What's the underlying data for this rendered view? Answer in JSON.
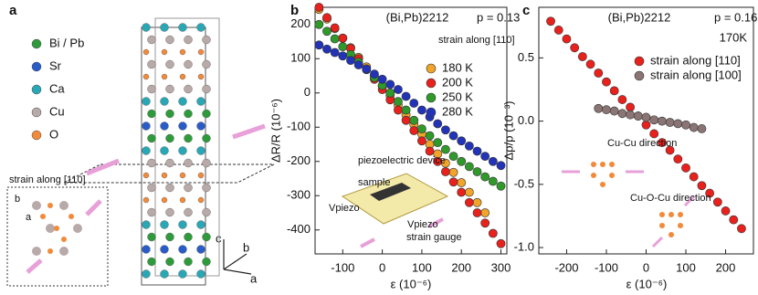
{
  "panel_a": {
    "label": "a",
    "atoms": [
      {
        "name": "Bi / Pb",
        "color": "#2f9a3c"
      },
      {
        "name": "Sr",
        "color": "#2a5cc8"
      },
      {
        "name": "Ca",
        "color": "#2aa7b5"
      },
      {
        "name": "Cu",
        "color": "#b8aaa8"
      },
      {
        "name": "O",
        "color": "#f28a3a"
      }
    ],
    "strain_label": "strain along [110]",
    "inset_axes": [
      "b",
      "a"
    ],
    "axes": [
      "c",
      "b",
      "a"
    ]
  },
  "chart_data": [
    {
      "type": "scatter",
      "panel": "b",
      "annotations": [
        "(Bi,Pb)2212",
        "p = 0.13",
        "strain along [110]"
      ],
      "inset_labels": [
        "piezoelectric device",
        "sample",
        "Vpiezo",
        "Vpiezo",
        "strain gauge"
      ],
      "xlabel": "ε (10⁻⁶)",
      "ylabel": "ΔR/R (10⁻⁶)",
      "xlim": [
        -170,
        315
      ],
      "ylim": [
        -470,
        250
      ],
      "xticks": [
        -100,
        0,
        100,
        200,
        300
      ],
      "yticks": [
        200,
        100,
        0,
        -100,
        -200,
        -300,
        -400
      ],
      "legend": "upper right",
      "series": [
        {
          "name": "180 K",
          "color": "#f0a52a",
          "x": [
            -160,
            -140,
            -120,
            -100,
            -80,
            -60,
            -40,
            -20,
            0,
            20,
            40,
            60,
            80,
            100,
            120,
            140,
            160,
            180,
            200,
            220,
            240,
            260
          ],
          "values": [
            244,
            216,
            188,
            160,
            132,
            104,
            76,
            48,
            20,
            -8,
            -36,
            -64,
            -92,
            -120,
            -150,
            -178,
            -205,
            -232,
            -262,
            -290,
            -320,
            -350
          ]
        },
        {
          "name": "200 K",
          "color": "#e8211d",
          "x": [
            -160,
            -140,
            -120,
            -100,
            -80,
            -60,
            -40,
            -20,
            0,
            20,
            40,
            60,
            80,
            100,
            120,
            140,
            160,
            180,
            200,
            220,
            240,
            260,
            280,
            300
          ],
          "values": [
            250,
            220,
            190,
            160,
            130,
            100,
            70,
            40,
            10,
            -20,
            -50,
            -80,
            -110,
            -140,
            -170,
            -200,
            -230,
            -260,
            -290,
            -320,
            -350,
            -380,
            -410,
            -440
          ]
        },
        {
          "name": "250 K",
          "color": "#2f9a2a",
          "x": [
            -160,
            -140,
            -120,
            -100,
            -80,
            -60,
            -40,
            -20,
            0,
            20,
            40,
            60,
            80,
            100,
            120,
            140,
            160,
            180,
            200,
            220,
            240,
            260,
            280,
            300
          ],
          "values": [
            200,
            180,
            158,
            135,
            112,
            90,
            68,
            45,
            22,
            0,
            -25,
            -50,
            -80,
            -105,
            -125,
            -145,
            -165,
            -185,
            -200,
            -215,
            -230,
            -245,
            -258,
            -272
          ]
        },
        {
          "name": "280 K",
          "color": "#2233b8",
          "x": [
            -160,
            -140,
            -120,
            -100,
            -80,
            -60,
            -40,
            -20,
            0,
            20,
            40,
            60,
            80,
            100,
            120,
            140,
            160,
            180,
            200,
            220,
            240,
            260,
            280,
            300
          ],
          "values": [
            140,
            128,
            118,
            108,
            95,
            82,
            70,
            55,
            40,
            25,
            10,
            -10,
            -30,
            -50,
            -70,
            -90,
            -108,
            -125,
            -140,
            -155,
            -170,
            -185,
            -200,
            -212
          ]
        }
      ]
    },
    {
      "type": "scatter",
      "panel": "c",
      "annotations": [
        "(Bi,Pb)2212",
        "p = 0.16",
        "170K"
      ],
      "inset_labels": [
        "Cu-Cu direction",
        "Cu-O-Cu direction"
      ],
      "xlabel": "ε (10⁻⁶)",
      "ylabel": "Δρ/ρ (10⁻³)",
      "xlim": [
        -270,
        270
      ],
      "ylim": [
        -1.05,
        0.9
      ],
      "xticks": [
        -200,
        -100,
        0,
        100,
        200
      ],
      "yticks": [
        0.5,
        {
          "value": 0,
          "label": "0.0"
        },
        -0.5,
        {
          "value": -1,
          "label": "-1.0"
        }
      ],
      "legend": "upper right",
      "series": [
        {
          "name": "strain along [110]",
          "color": "#e8211d",
          "x": [
            -240,
            -220,
            -200,
            -180,
            -160,
            -140,
            -120,
            -100,
            -80,
            -60,
            -40,
            -20,
            0,
            20,
            40,
            60,
            80,
            100,
            120,
            140,
            160,
            180,
            200,
            220,
            240
          ],
          "values": [
            0.79,
            0.72,
            0.65,
            0.58,
            0.51,
            0.45,
            0.38,
            0.31,
            0.24,
            0.17,
            0.11,
            0.04,
            -0.03,
            -0.1,
            -0.17,
            -0.23,
            -0.3,
            -0.37,
            -0.44,
            -0.51,
            -0.57,
            -0.64,
            -0.71,
            -0.78,
            -0.85
          ]
        },
        {
          "name": "strain along [100]",
          "color": "#8a7474",
          "x": [
            -120,
            -100,
            -80,
            -60,
            -40,
            -20,
            0,
            20,
            40,
            60,
            80,
            100,
            120,
            140
          ],
          "values": [
            0.1,
            0.09,
            0.08,
            0.06,
            0.05,
            0.04,
            0.03,
            0.01,
            0,
            -0.01,
            -0.02,
            -0.03,
            -0.05,
            -0.06
          ]
        }
      ]
    }
  ]
}
